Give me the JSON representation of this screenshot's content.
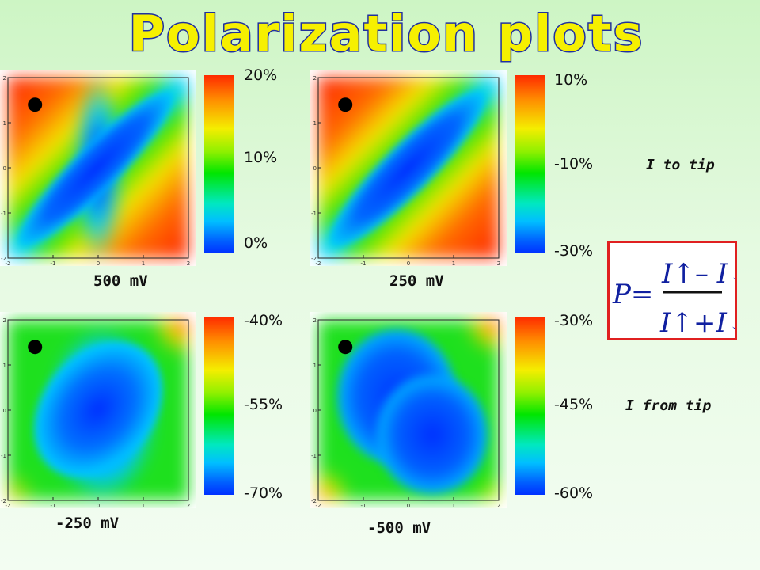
{
  "title": "Polarization plots",
  "chart_data": [
    {
      "type": "heatmap",
      "label": "500 mV",
      "colorbar_ticks": [
        "20%",
        "10%",
        "0%"
      ],
      "x_ticks": [
        "-2",
        "-1",
        "0",
        "1",
        "2"
      ],
      "y_ticks": [
        "2",
        "1",
        "0",
        "-1",
        "-2"
      ],
      "marker": [
        -1.4,
        1.4
      ],
      "pattern": "diagonal-valley"
    },
    {
      "type": "heatmap",
      "label": "250 mV",
      "colorbar_ticks": [
        "10%",
        "-10%",
        "-30%"
      ],
      "x_ticks": [
        "-2",
        "-1",
        "0",
        "1",
        "2"
      ],
      "y_ticks": [
        "2",
        "1",
        "0",
        "-1",
        "-2"
      ],
      "marker": [
        -1.4,
        1.4
      ],
      "pattern": "diagonal-valley"
    },
    {
      "type": "heatmap",
      "label": "-250 mV",
      "colorbar_ticks": [
        "-40%",
        "-55%",
        "-70%"
      ],
      "x_ticks": [
        "-2",
        "-1",
        "0",
        "1",
        "2"
      ],
      "y_ticks": [
        "2",
        "1",
        "0",
        "-1",
        "-2"
      ],
      "marker": [
        -1.4,
        1.4
      ],
      "pattern": "broad-valley"
    },
    {
      "type": "heatmap",
      "label": "-500 mV",
      "colorbar_ticks": [
        "-30%",
        "-45%",
        "-60%"
      ],
      "x_ticks": [
        "-2",
        "-1",
        "0",
        "1",
        "2"
      ],
      "y_ticks": [
        "2",
        "1",
        "0",
        "-1",
        "-2"
      ],
      "marker": [
        -1.4,
        1.4
      ],
      "pattern": "double-valley"
    }
  ],
  "annotations": {
    "to_tip": "I to tip",
    "from_tip": "I from tip"
  },
  "formula": {
    "lhs": "P=",
    "numerator": "I↑– I↓",
    "denominator": "I↑+I↓",
    "border_color": "#e02020"
  }
}
